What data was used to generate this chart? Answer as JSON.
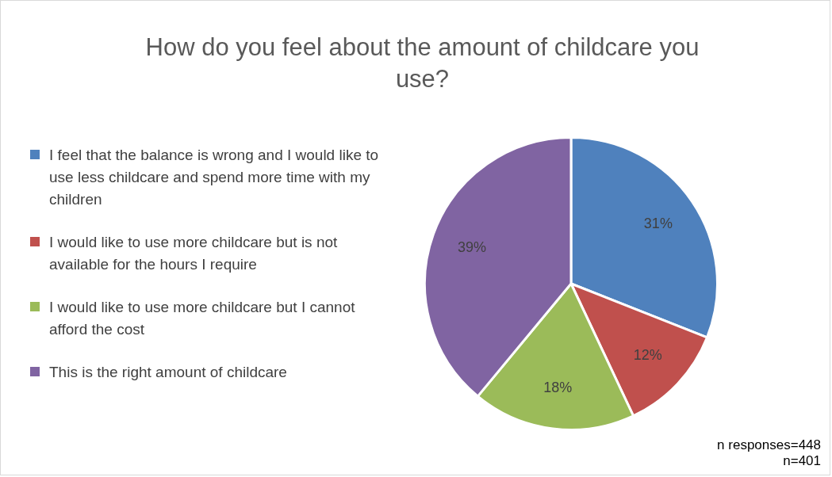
{
  "chart_data": {
    "type": "pie",
    "title": "How do you feel about the amount of childcare you use?",
    "categories": [
      "I feel that the balance is wrong and I would like to use less childcare and spend more time with my children",
      "I would like to use more childcare but is not available for the hours I require",
      "I would like to use more childcare but I cannot afford the cost",
      "This is the right amount of childcare"
    ],
    "values": [
      31,
      12,
      18,
      39
    ],
    "colors": [
      "#4f81bd",
      "#c0504d",
      "#9bbb59",
      "#8064a2"
    ],
    "value_labels": [
      "31%",
      "12%",
      "18%",
      "39%"
    ],
    "legend": "left",
    "annotations": [
      "n responses=448",
      "n=401"
    ]
  }
}
